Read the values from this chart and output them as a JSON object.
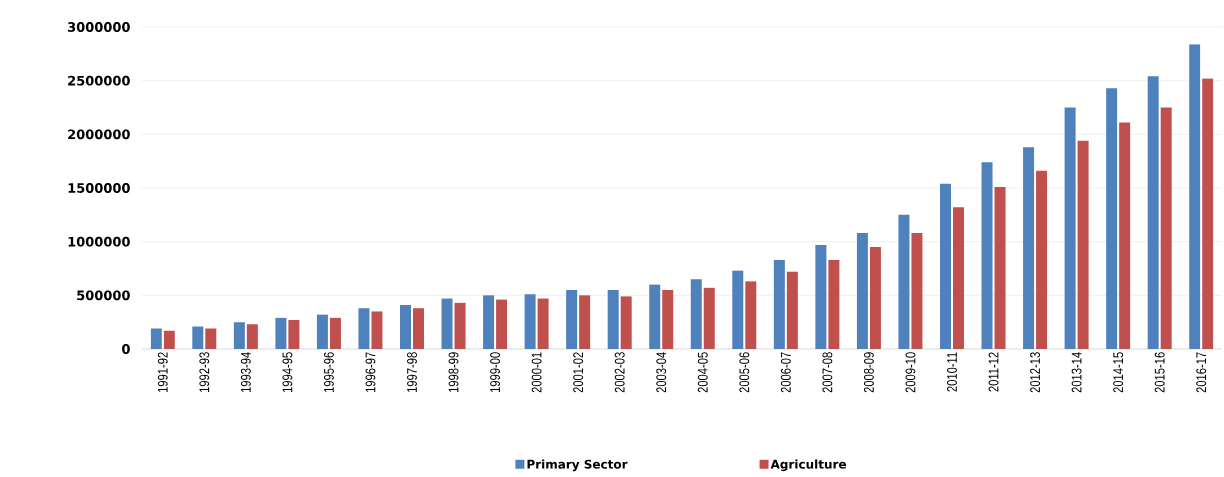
{
  "chart_data": {
    "type": "bar",
    "categories": [
      "1991-92",
      "1992-93",
      "1993-94",
      "1994-95",
      "1995-96",
      "1996-97",
      "1997-98",
      "1998-99",
      "1999-00",
      "2000-01",
      "2001-02",
      "2002-03",
      "2003-04",
      "2004-05",
      "2005-06",
      "2006-07",
      "2007-08",
      "2008-09",
      "2009-10",
      "2010-11",
      "2011-12",
      "2012-13",
      "2013-14",
      "2014-15",
      "2015-16",
      "2016-17"
    ],
    "series": [
      {
        "name": "Primary Sector",
        "color": "#4f81bd",
        "values": [
          190000,
          210000,
          250000,
          290000,
          320000,
          380000,
          410000,
          470000,
          500000,
          510000,
          550000,
          550000,
          600000,
          650000,
          730000,
          830000,
          970000,
          1080000,
          1250000,
          1540000,
          1740000,
          1880000,
          2250000,
          2430000,
          2540000,
          2840000
        ]
      },
      {
        "name": "Agriculture",
        "color": "#c0504d",
        "values": [
          170000,
          190000,
          230000,
          270000,
          290000,
          350000,
          380000,
          430000,
          460000,
          470000,
          500000,
          490000,
          550000,
          570000,
          630000,
          720000,
          830000,
          950000,
          1080000,
          1320000,
          1510000,
          1660000,
          1940000,
          2110000,
          2250000,
          2520000
        ]
      }
    ],
    "ylim": [
      0,
      3000000
    ],
    "yticks": [
      0,
      500000,
      1000000,
      1500000,
      2000000,
      2500000,
      3000000
    ],
    "grid": "y",
    "legend": "bottom"
  }
}
